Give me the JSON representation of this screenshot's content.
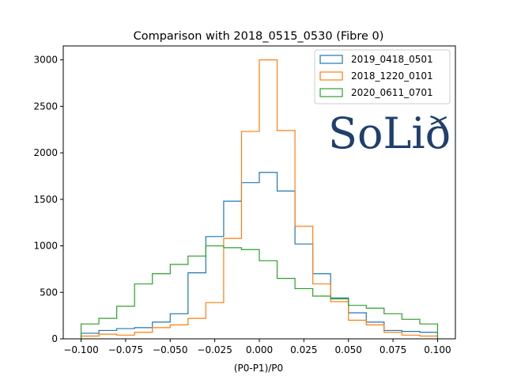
{
  "chart_data": {
    "type": "line",
    "style": "step-histogram",
    "title": "Comparison with 2018_0515_0530 (Fibre 0)",
    "xlabel": "(P0-P1)/P0",
    "ylabel": "",
    "xlim": [
      -0.11,
      0.11
    ],
    "ylim": [
      0,
      3150
    ],
    "bin_edges": [
      -0.1,
      -0.09,
      -0.08,
      -0.07,
      -0.06,
      -0.05,
      -0.04,
      -0.03,
      -0.02,
      -0.01,
      0.0,
      0.01,
      0.02,
      0.03,
      0.04,
      0.05,
      0.06,
      0.07,
      0.08,
      0.09,
      0.1
    ],
    "xticks": [
      -0.1,
      -0.075,
      -0.05,
      -0.025,
      0.0,
      0.025,
      0.05,
      0.075,
      0.1
    ],
    "xtick_labels": [
      "−0.100",
      "−0.075",
      "−0.050",
      "−0.025",
      "0.000",
      "0.025",
      "0.050",
      "0.075",
      "0.100"
    ],
    "yticks": [
      0,
      500,
      1000,
      1500,
      2000,
      2500,
      3000
    ],
    "ytick_labels": [
      "0",
      "500",
      "1000",
      "1500",
      "2000",
      "2500",
      "3000"
    ],
    "legend_position": "top-right",
    "series": [
      {
        "name": "2019_0418_0501",
        "color": "#1f77b4",
        "values": [
          60,
          90,
          110,
          120,
          180,
          270,
          710,
          1100,
          1480,
          1680,
          1790,
          1590,
          1020,
          700,
          440,
          280,
          180,
          90,
          80,
          70
        ]
      },
      {
        "name": "2018_1220_0101",
        "color": "#ff7f0e",
        "values": [
          30,
          50,
          40,
          70,
          120,
          150,
          220,
          390,
          1080,
          2230,
          3000,
          2240,
          1210,
          590,
          400,
          200,
          150,
          70,
          40,
          30
        ]
      },
      {
        "name": "2020_0611_0701",
        "color": "#2ca02c",
        "values": [
          160,
          220,
          350,
          590,
          700,
          800,
          890,
          1000,
          980,
          960,
          840,
          650,
          540,
          460,
          430,
          360,
          330,
          270,
          210,
          160
        ]
      }
    ]
  },
  "logo": {
    "text": "SoLið",
    "color": "#1f3f6e"
  }
}
